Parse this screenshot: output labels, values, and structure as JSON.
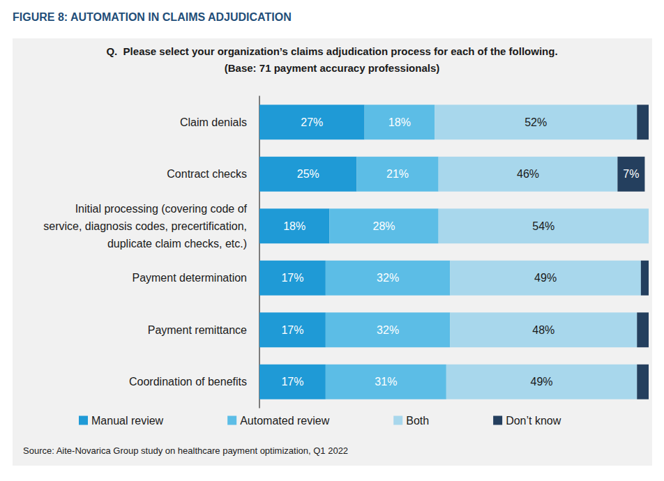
{
  "chart_data": {
    "type": "bar",
    "orientation": "horizontal",
    "stacked": true,
    "data_labels": true,
    "tick_labels": "y",
    "grid": false,
    "legend": "bottom",
    "title": "FIGURE 8: AUTOMATION IN CLAIMS ADJUDICATION",
    "subtitle": "Q.  Please select your organization’s claims adjudication process for each of the following.\n(Base: 71 payment accuracy professionals)",
    "annotations": [
      "Source: Aite-Novarica Group study on healthcare payment optimization, Q1 2022"
    ],
    "categories": [
      "Claim denials",
      "Contract checks",
      "Initial processing (covering code of\nservice, diagnosis codes, precertification,\nduplicate claim checks, etc.)",
      "Payment determination",
      "Payment remittance",
      "Coordination of benefits"
    ],
    "xlim": [
      0,
      100
    ],
    "series": [
      {
        "name": "Manual review",
        "color": "#1f9ad6",
        "values": [
          27,
          25,
          18,
          17,
          17,
          17
        ],
        "value_labels": [
          "27%",
          "25%",
          "18%",
          "17%",
          "17%",
          "17%"
        ]
      },
      {
        "name": "Automated review",
        "color": "#5cbde6",
        "values": [
          18,
          21,
          28,
          32,
          32,
          31
        ],
        "value_labels": [
          "18%",
          "21%",
          "28%",
          "32%",
          "32%",
          "31%"
        ]
      },
      {
        "name": "Both",
        "color": "#a8d7ec",
        "values": [
          52,
          46,
          54,
          49,
          48,
          49
        ],
        "value_labels": [
          "52%",
          "46%",
          "54%",
          "49%",
          "48%",
          "49%"
        ]
      },
      {
        "name": "Don’t know",
        "color": "#243f5e",
        "values": [
          3,
          7,
          0,
          2,
          3,
          3
        ],
        "value_labels": [
          null,
          "7%",
          null,
          null,
          null,
          null
        ]
      }
    ]
  }
}
